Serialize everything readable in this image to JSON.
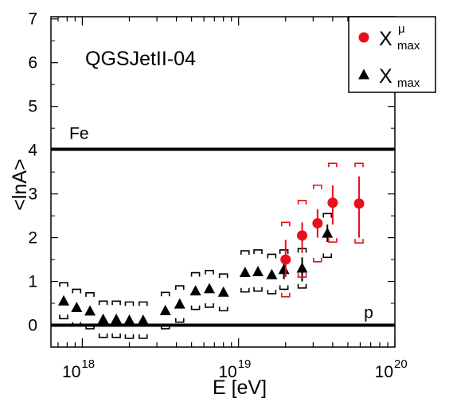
{
  "chart_data": {
    "type": "scatter",
    "xscale": "log",
    "xlim": [
      6.3e+17,
      1e+20
    ],
    "ylim": [
      -0.5,
      7.05
    ],
    "xlabel": "E [eV]",
    "ylabel": "<lnA>",
    "model_label": "QGSJetII-04",
    "x_ticks": [
      {
        "value": 1e+18,
        "base": "10",
        "exp": "18"
      },
      {
        "value": 1e+19,
        "base": "10",
        "exp": "19"
      },
      {
        "value": 1e+20,
        "base": "10",
        "exp": "20"
      }
    ],
    "y_ticks": [
      "0",
      "1",
      "2",
      "3",
      "4",
      "5",
      "6",
      "7"
    ],
    "reference_lines": [
      {
        "label": "Fe",
        "y": 4.02
      },
      {
        "label": "p",
        "y": 0.0
      }
    ],
    "legend": {
      "position": "top-right",
      "entries": [
        {
          "base": "X",
          "sup": "μ",
          "sub": "max",
          "marker": "circle",
          "color": "#e8101a"
        },
        {
          "base": "X",
          "sup": "",
          "sub": "max",
          "marker": "triangle",
          "color": "#000000"
        }
      ]
    },
    "series": [
      {
        "marker": "triangle",
        "color": "#000000",
        "points": [
          {
            "x": 7.6e+17,
            "y": 0.55,
            "sys_lo": 0.15,
            "sys_hi": 0.97
          },
          {
            "x": 9.2e+17,
            "y": 0.4,
            "sys_lo": -0.02,
            "sys_hi": 0.82
          },
          {
            "x": 1.12e+18,
            "y": 0.32,
            "sys_lo": -0.08,
            "sys_hi": 0.74
          },
          {
            "x": 1.36e+18,
            "y": 0.13,
            "sys_lo": -0.28,
            "sys_hi": 0.55
          },
          {
            "x": 1.65e+18,
            "y": 0.13,
            "sys_lo": -0.28,
            "sys_hi": 0.55
          },
          {
            "x": 2e+18,
            "y": 0.11,
            "sys_lo": -0.3,
            "sys_hi": 0.53
          },
          {
            "x": 2.45e+18,
            "y": 0.11,
            "sys_lo": -0.3,
            "sys_hi": 0.53
          },
          {
            "x": 3.4e+18,
            "y": 0.33,
            "sys_lo": -0.08,
            "sys_hi": 0.75
          },
          {
            "x": 4.2e+18,
            "y": 0.48,
            "sys_lo": 0.07,
            "sys_hi": 0.9
          },
          {
            "x": 5.3e+18,
            "y": 0.78,
            "sys_lo": 0.36,
            "sys_hi": 1.2
          },
          {
            "x": 6.5e+18,
            "y": 0.83,
            "sys_lo": 0.41,
            "sys_hi": 1.25
          },
          {
            "x": 8e+18,
            "y": 0.75,
            "sys_lo": 0.33,
            "sys_hi": 1.17
          },
          {
            "x": 1.1e+19,
            "y": 1.2,
            "sys_lo": 0.76,
            "sys_hi": 1.7
          },
          {
            "x": 1.33e+19,
            "y": 1.22,
            "sys_lo": 0.78,
            "sys_hi": 1.72
          },
          {
            "x": 1.63e+19,
            "y": 1.15,
            "sys_lo": 0.72,
            "sys_hi": 1.62
          },
          {
            "x": 1.95e+19,
            "y": 1.27,
            "sys_lo": 0.82,
            "sys_hi": 1.72,
            "err_lo": 1.05,
            "err_hi": 1.5
          },
          {
            "x": 2.55e+19,
            "y": 1.3,
            "sys_lo": 0.85,
            "sys_hi": 1.75,
            "err_lo": 1.0,
            "err_hi": 1.55
          },
          {
            "x": 3.7e+19,
            "y": 2.1,
            "sys_lo": 1.55,
            "sys_hi": 2.55,
            "err_lo": 1.9,
            "err_hi": 2.3
          }
        ]
      },
      {
        "marker": "circle",
        "color": "#e8101a",
        "points": [
          {
            "x": 2e+19,
            "y": 1.5,
            "err_lo": 1.1,
            "err_hi": 1.95,
            "sys_lo": 0.65,
            "sys_hi": 2.35
          },
          {
            "x": 2.55e+19,
            "y": 2.05,
            "err_lo": 1.65,
            "err_hi": 2.35,
            "sys_lo": 1.1,
            "sys_hi": 2.85
          },
          {
            "x": 3.2e+19,
            "y": 2.33,
            "err_lo": 2.0,
            "err_hi": 2.65,
            "sys_lo": 1.45,
            "sys_hi": 3.2
          },
          {
            "x": 4e+19,
            "y": 2.8,
            "err_lo": 2.3,
            "err_hi": 3.2,
            "sys_lo": 1.9,
            "sys_hi": 3.7
          },
          {
            "x": 5.9e+19,
            "y": 2.78,
            "err_lo": 2.0,
            "err_hi": 3.4,
            "sys_lo": 1.88,
            "sys_hi": 3.7
          }
        ]
      }
    ]
  }
}
